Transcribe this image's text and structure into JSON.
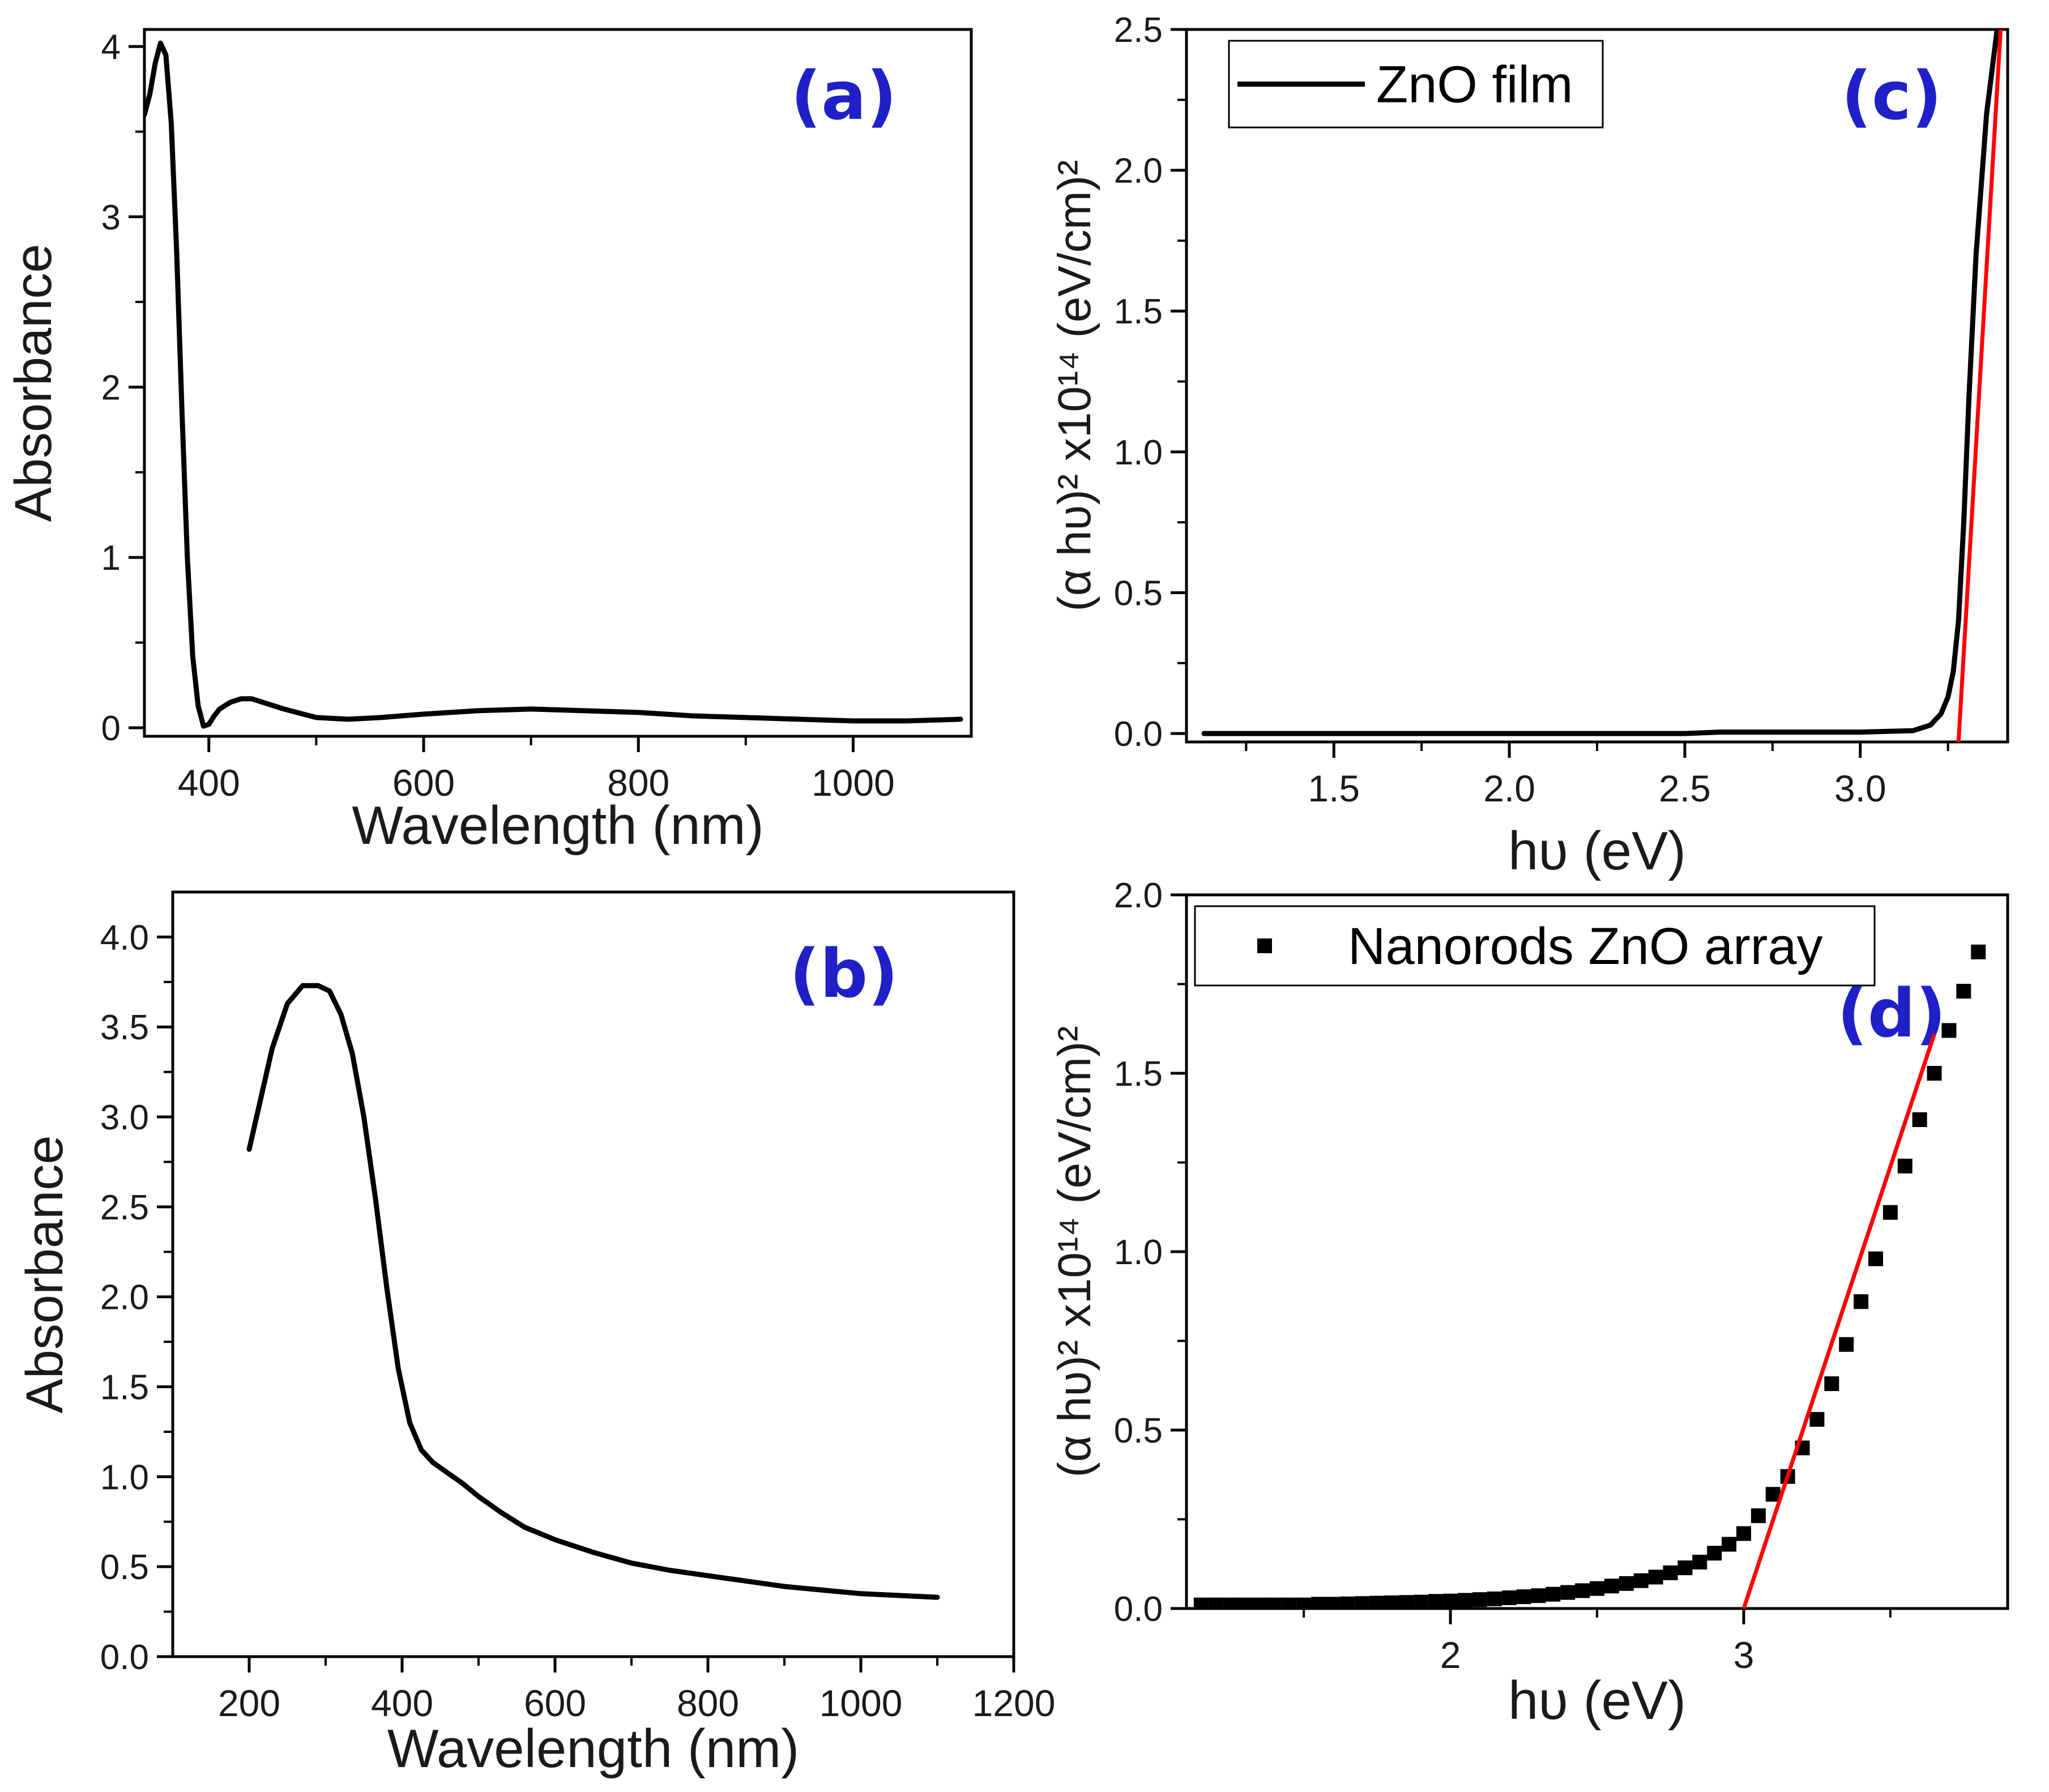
{
  "colors": {
    "data": "#000000",
    "fit_line": "#ff0000",
    "panel_label": "#2020c8",
    "axis": "#000000"
  },
  "chart_data": [
    {
      "id": "a",
      "type": "line",
      "panel_label": "(a)",
      "xlabel": "Wavelength (nm)",
      "ylabel": "Absorbance",
      "xlim": [
        340,
        1110
      ],
      "ylim": [
        -0.05,
        4.1
      ],
      "xticks": [
        400,
        600,
        800,
        1000
      ],
      "yticks": [
        0,
        1,
        2,
        3,
        4
      ],
      "xtick_labels": [
        "400",
        "600",
        "800",
        "1000"
      ],
      "ytick_labels": [
        "0",
        "1",
        "2",
        "3",
        "4"
      ],
      "minor_x": [
        500,
        700,
        900
      ],
      "minor_y": [
        0.5,
        1.5,
        2.5,
        3.5
      ],
      "series": [
        {
          "x": [
            340,
            345,
            350,
            355,
            360,
            365,
            370,
            375,
            380,
            385,
            390,
            395,
            400,
            405,
            410,
            420,
            430,
            440,
            450,
            470,
            500,
            530,
            560,
            600,
            650,
            700,
            750,
            800,
            850,
            900,
            950,
            1000,
            1050,
            1100
          ],
          "y": [
            3.6,
            3.72,
            3.9,
            4.02,
            3.95,
            3.55,
            2.8,
            1.85,
            1.0,
            0.42,
            0.13,
            0.01,
            0.02,
            0.07,
            0.11,
            0.15,
            0.17,
            0.17,
            0.15,
            0.11,
            0.06,
            0.05,
            0.06,
            0.08,
            0.1,
            0.11,
            0.1,
            0.09,
            0.07,
            0.06,
            0.05,
            0.04,
            0.04,
            0.05
          ]
        }
      ]
    },
    {
      "id": "b",
      "type": "line",
      "panel_label": "(b)",
      "xlabel": "Wavelength (nm)",
      "ylabel": "Absorbance",
      "xlim": [
        100,
        1200
      ],
      "ylim": [
        0,
        4.25
      ],
      "xticks": [
        200,
        400,
        600,
        800,
        1000,
        1200
      ],
      "yticks": [
        0,
        0.5,
        1.0,
        1.5,
        2.0,
        2.5,
        3.0,
        3.5,
        4.0
      ],
      "xtick_labels": [
        "200",
        "400",
        "600",
        "800",
        "1000",
        "1200"
      ],
      "ytick_labels": [
        "0.0",
        "0.5",
        "1.0",
        "1.5",
        "2.0",
        "2.5",
        "3.0",
        "3.5",
        "4.0"
      ],
      "minor_x": [
        300,
        500,
        700,
        900,
        1100
      ],
      "minor_y": [
        0.25,
        0.75,
        1.25,
        1.75,
        2.25,
        2.75,
        3.25,
        3.75
      ],
      "series": [
        {
          "x": [
            200,
            215,
            230,
            250,
            270,
            290,
            305,
            320,
            335,
            350,
            365,
            380,
            395,
            410,
            425,
            440,
            460,
            480,
            500,
            530,
            560,
            600,
            650,
            700,
            750,
            800,
            850,
            900,
            950,
            1000,
            1050,
            1100
          ],
          "y": [
            2.82,
            3.1,
            3.38,
            3.63,
            3.73,
            3.73,
            3.7,
            3.57,
            3.35,
            3.0,
            2.55,
            2.05,
            1.6,
            1.3,
            1.15,
            1.08,
            1.02,
            0.96,
            0.89,
            0.8,
            0.72,
            0.65,
            0.58,
            0.52,
            0.48,
            0.45,
            0.42,
            0.39,
            0.37,
            0.35,
            0.34,
            0.33
          ]
        }
      ]
    },
    {
      "id": "c",
      "type": "line",
      "panel_label": "(c)",
      "xlabel": "hυ (eV)",
      "ylabel": "(α hυ)² x10¹⁴ (eV/cm)²",
      "xlim": [
        1.08,
        3.42
      ],
      "ylim": [
        -0.03,
        2.5
      ],
      "xticks": [
        1.5,
        2.0,
        2.5,
        3.0
      ],
      "yticks": [
        0.0,
        0.5,
        1.0,
        1.5,
        2.0,
        2.5
      ],
      "xtick_labels": [
        "1.5",
        "2.0",
        "2.5",
        "3.0"
      ],
      "ytick_labels": [
        "0.0",
        "0.5",
        "1.0",
        "1.5",
        "2.0",
        "2.5"
      ],
      "minor_x": [
        1.25,
        1.75,
        2.25,
        2.75,
        3.25
      ],
      "minor_y": [
        0.25,
        0.75,
        1.25,
        1.75,
        2.25
      ],
      "legend": [
        "ZnO film"
      ],
      "series": [
        {
          "name": "ZnO film",
          "x": [
            1.13,
            1.5,
            2.0,
            2.5,
            2.6,
            3.0,
            3.15,
            3.2,
            3.23,
            3.25,
            3.265,
            3.28,
            3.295,
            3.31,
            3.33,
            3.36,
            3.39
          ],
          "y": [
            0.0,
            0.0,
            0.0,
            0.0,
            0.005,
            0.005,
            0.01,
            0.03,
            0.07,
            0.13,
            0.22,
            0.4,
            0.75,
            1.2,
            1.7,
            2.2,
            2.5
          ]
        }
      ],
      "fit_line": {
        "x": [
          3.28,
          3.4
        ],
        "y": [
          -0.03,
          2.5
        ]
      }
    },
    {
      "id": "d",
      "type": "scatter",
      "panel_label": "(d)",
      "xlabel": "hυ (eV)",
      "ylabel": "(α hυ)² x10¹⁴ (eV/cm)²",
      "xlim": [
        1.1,
        3.9
      ],
      "ylim": [
        0.0,
        2.0
      ],
      "xticks": [
        2,
        3
      ],
      "yticks": [
        0.0,
        0.5,
        1.0,
        1.5,
        2.0
      ],
      "xtick_labels": [
        "2",
        "3"
      ],
      "ytick_labels": [
        "0.0",
        "0.5",
        "1.0",
        "1.5",
        "2.0"
      ],
      "minor_x": [
        1.5,
        2.5,
        3.5
      ],
      "minor_y": [
        0.25,
        0.75,
        1.25,
        1.75
      ],
      "legend": [
        "Nanorods ZnO array"
      ],
      "series": [
        {
          "name": "Nanorods ZnO array",
          "x": [
            1.15,
            1.2,
            1.25,
            1.3,
            1.35,
            1.4,
            1.45,
            1.5,
            1.55,
            1.6,
            1.65,
            1.7,
            1.75,
            1.8,
            1.85,
            1.9,
            1.95,
            2.0,
            2.05,
            2.1,
            2.15,
            2.2,
            2.25,
            2.3,
            2.35,
            2.4,
            2.45,
            2.5,
            2.55,
            2.6,
            2.65,
            2.7,
            2.75,
            2.8,
            2.85,
            2.9,
            2.95,
            3.0,
            3.05,
            3.1,
            3.15,
            3.2,
            3.25,
            3.3,
            3.35,
            3.4,
            3.45,
            3.5,
            3.55,
            3.6,
            3.65,
            3.7,
            3.75,
            3.8
          ],
          "y": [
            0.01,
            0.01,
            0.01,
            0.01,
            0.01,
            0.01,
            0.01,
            0.01,
            0.012,
            0.012,
            0.013,
            0.014,
            0.015,
            0.016,
            0.017,
            0.018,
            0.02,
            0.021,
            0.023,
            0.025,
            0.027,
            0.03,
            0.033,
            0.036,
            0.04,
            0.045,
            0.05,
            0.056,
            0.063,
            0.07,
            0.078,
            0.088,
            0.1,
            0.114,
            0.13,
            0.155,
            0.18,
            0.21,
            0.26,
            0.32,
            0.37,
            0.45,
            0.53,
            0.63,
            0.74,
            0.86,
            0.98,
            1.11,
            1.24,
            1.37,
            1.5,
            1.62,
            1.73,
            1.84
          ]
        }
      ],
      "fit_line": {
        "x": [
          3.0,
          3.65
        ],
        "y": [
          0.0,
          1.61
        ]
      }
    }
  ]
}
